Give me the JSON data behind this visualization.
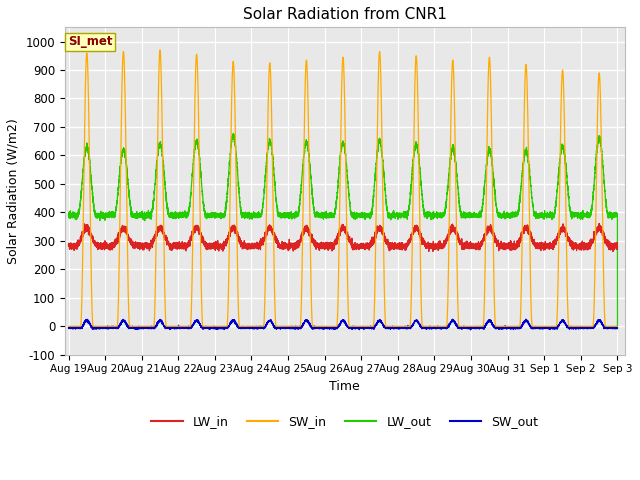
{
  "title": "Solar Radiation from CNR1",
  "xlabel": "Time",
  "ylabel": "Solar Radiation (W/m2)",
  "ylim": [
    -100,
    1050
  ],
  "annotation": "SI_met",
  "plot_bg_color": "#e8e8e8",
  "grid_color": "white",
  "tick_labels": [
    "Aug 19",
    "Aug 20",
    "Aug 21",
    "Aug 22",
    "Aug 23",
    "Aug 24",
    "Aug 25",
    "Aug 26",
    "Aug 27",
    "Aug 28",
    "Aug 29",
    "Aug 30",
    "Aug 31",
    "Sep 1",
    "Sep 2",
    "Sep 3"
  ],
  "legend_colors": {
    "LW_in": "#dd2222",
    "SW_in": "#ffaa00",
    "LW_out": "#22cc00",
    "SW_out": "#0000cc"
  },
  "n_days": 15,
  "pts_per_day": 480,
  "sw_peaks": [
    960,
    965,
    970,
    955,
    930,
    925,
    935,
    945,
    965,
    950,
    935,
    945,
    920,
    900,
    890
  ],
  "lw_out_peaks": [
    630,
    620,
    640,
    650,
    670,
    650,
    645,
    645,
    650,
    640,
    625,
    620,
    615,
    630,
    660
  ],
  "lw_in_base": 290,
  "lw_in_amp": 55,
  "lw_out_night": 390,
  "sw_out_amp": 25
}
